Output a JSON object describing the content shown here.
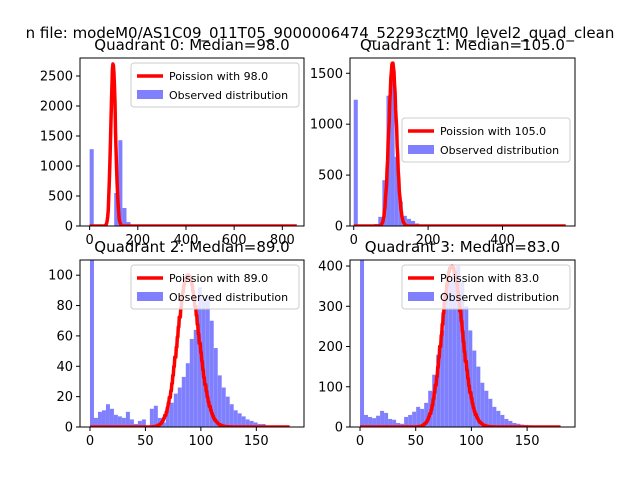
{
  "figure_title": "n file: modeM0/AS1C09_011T05_9000006474_52293cztM0_level2_quad_clean",
  "colors": {
    "observed": "#8080ff",
    "poisson": "#ff0000",
    "frame": "#000000",
    "legend_border": "#cccccc"
  },
  "chart_data": [
    {
      "type": "bar",
      "title": "Quadrant 0: Median=98.0",
      "xlim": [
        -40,
        890
      ],
      "ylim": [
        0,
        2800
      ],
      "xticks": [
        0,
        200,
        400,
        600,
        800
      ],
      "xtick_labels": [
        "0",
        "200",
        "400",
        "600",
        "800"
      ],
      "yticks": [
        0,
        500,
        1000,
        1500,
        2000,
        2500
      ],
      "ytick_labels": [
        "0",
        "500",
        "1000",
        "1500",
        "2000",
        "2500"
      ],
      "legend_position": "top-right",
      "series": [
        {
          "name": "Observed distribution",
          "kind": "histogram",
          "bin_width": 17,
          "start": 0,
          "values": [
            1280,
            0,
            0,
            0,
            0,
            0,
            550,
            1430,
            300,
            65,
            15,
            10,
            4,
            3,
            2,
            1,
            1,
            1,
            1,
            1
          ]
        },
        {
          "name": "Poission with 98.0",
          "kind": "poisson",
          "mean": 98.0,
          "scale": 2700,
          "x_range": [
            0,
            860
          ]
        }
      ]
    },
    {
      "type": "bar",
      "title": "Quadrant 1: Median=105.0",
      "xlim": [
        -10,
        595
      ],
      "ylim": [
        0,
        1650
      ],
      "xticks": [
        0,
        200,
        400
      ],
      "xtick_labels": [
        "0",
        "200",
        "400"
      ],
      "yticks": [
        0,
        500,
        1000,
        1500
      ],
      "ytick_labels": [
        "0",
        "500",
        "1000",
        "1500"
      ],
      "legend_position": "center-right",
      "series": [
        {
          "name": "Observed distribution",
          "kind": "histogram",
          "bin_width": 11,
          "start": 0,
          "values": [
            1240,
            0,
            0,
            0,
            0,
            20,
            90,
            450,
            1280,
            1500,
            680,
            240,
            100,
            70,
            50,
            25,
            15,
            8,
            5,
            3,
            2,
            1,
            1,
            1,
            1,
            1,
            1,
            1,
            1,
            1,
            1,
            1,
            1,
            1,
            1,
            1,
            1,
            1,
            1,
            1,
            1,
            1,
            1,
            1,
            1,
            1,
            1,
            5,
            3,
            2,
            1,
            1
          ]
        },
        {
          "name": "Poission with 105.0",
          "kind": "poisson",
          "mean": 105.0,
          "scale": 1600,
          "x_range": [
            0,
            570
          ]
        }
      ]
    },
    {
      "type": "bar",
      "title": "Quadrant 2: Median=89.0",
      "xlim": [
        -9,
        193
      ],
      "ylim": [
        0,
        110
      ],
      "xticks": [
        0,
        50,
        100,
        150
      ],
      "xtick_labels": [
        "0",
        "50",
        "100",
        "150"
      ],
      "yticks": [
        0,
        20,
        40,
        60,
        80,
        100
      ],
      "ytick_labels": [
        "0",
        "20",
        "40",
        "60",
        "80",
        "100"
      ],
      "legend_position": "top-right",
      "series": [
        {
          "name": "Observed distribution",
          "kind": "histogram",
          "bin_width": 3.6,
          "start": 0,
          "values": [
            110,
            6,
            10,
            11,
            15,
            12,
            8,
            7,
            6,
            10,
            5,
            2,
            4,
            5,
            1,
            12,
            14,
            6,
            3,
            12,
            16,
            22,
            26,
            33,
            42,
            58,
            64,
            92,
            84,
            86,
            70,
            52,
            34,
            26,
            20,
            15,
            11,
            9,
            7,
            5,
            4,
            3,
            2,
            2,
            1,
            1,
            1,
            1,
            1,
            1
          ]
        },
        {
          "name": "Poission with 89.0",
          "kind": "poisson",
          "mean": 89.0,
          "scale": 100,
          "x_range": [
            0,
            180
          ]
        }
      ]
    },
    {
      "type": "bar",
      "title": "Quadrant 3: Median=83.0",
      "xlim": [
        -9,
        193
      ],
      "ylim": [
        0,
        415
      ],
      "xticks": [
        0,
        50,
        100,
        150
      ],
      "xtick_labels": [
        "0",
        "50",
        "100",
        "150"
      ],
      "yticks": [
        0,
        100,
        200,
        300,
        400
      ],
      "ytick_labels": [
        "0",
        "100",
        "200",
        "300",
        "400"
      ],
      "legend_position": "top-right",
      "series": [
        {
          "name": "Observed distribution",
          "kind": "histogram",
          "bin_width": 3.6,
          "start": 0,
          "values": [
            415,
            30,
            25,
            22,
            28,
            40,
            35,
            20,
            18,
            10,
            8,
            25,
            30,
            38,
            50,
            45,
            60,
            90,
            130,
            180,
            240,
            320,
            360,
            390,
            400,
            360,
            300,
            240,
            190,
            150,
            110,
            90,
            70,
            50,
            40,
            30,
            20,
            15,
            10,
            8,
            6,
            5,
            4,
            3,
            2,
            2,
            1,
            1,
            1,
            1
          ]
        },
        {
          "name": "Poission with 83.0",
          "kind": "poisson",
          "mean": 83.0,
          "scale": 400,
          "x_range": [
            0,
            180
          ]
        }
      ]
    }
  ]
}
